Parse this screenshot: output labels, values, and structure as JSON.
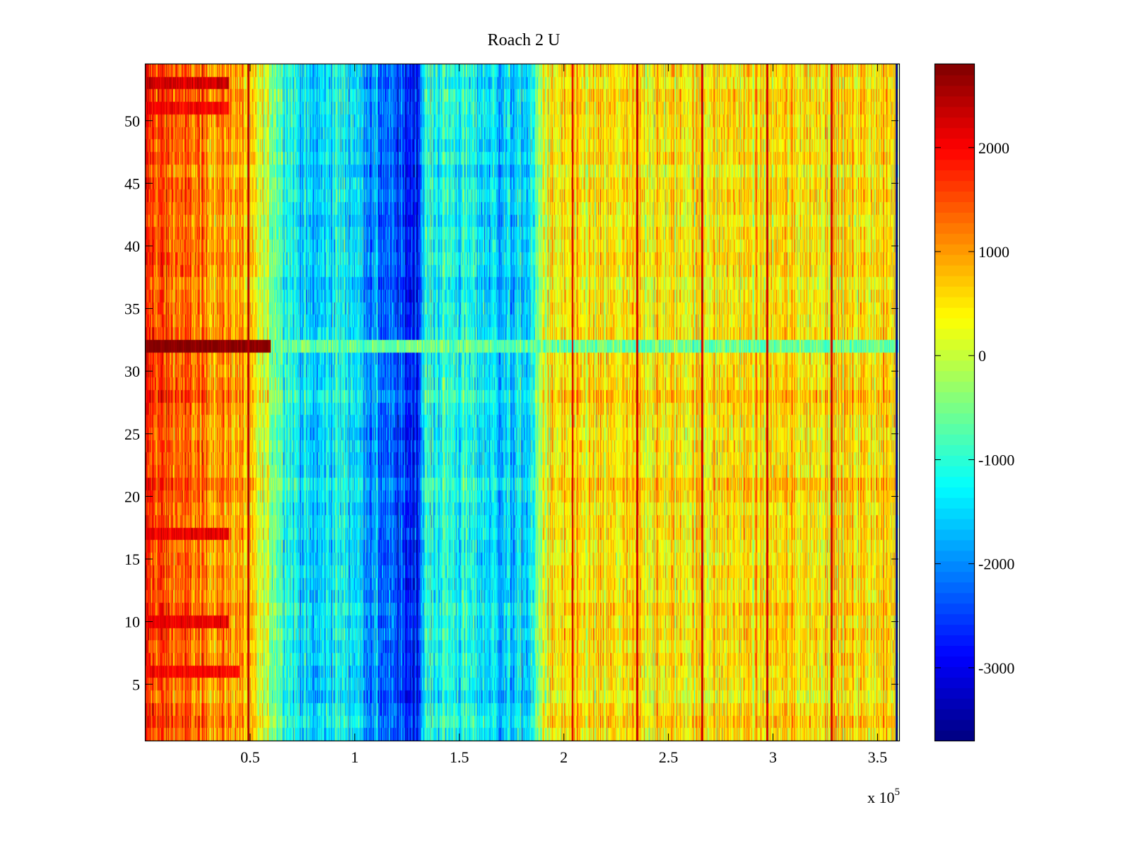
{
  "chart_data": {
    "type": "heatmap",
    "title": "Roach 2 U",
    "xlabel": "",
    "ylabel": "",
    "x_multiplier_label": "x 10",
    "x_multiplier_exponent": "5",
    "xlim": [
      0,
      3.6
    ],
    "ylim": [
      0.5,
      54.5
    ],
    "n_rows": 54,
    "x_ticks": [
      0.5,
      1,
      1.5,
      2,
      2.5,
      3,
      3.5
    ],
    "x_tick_labels": [
      "0.5",
      "1",
      "1.5",
      "2",
      "2.5",
      "3",
      "3.5"
    ],
    "y_ticks": [
      5,
      10,
      15,
      20,
      25,
      30,
      35,
      40,
      45,
      50
    ],
    "y_tick_labels": [
      "5",
      "10",
      "15",
      "20",
      "25",
      "30",
      "35",
      "40",
      "45",
      "50"
    ],
    "colorbar": {
      "colormap": "jet",
      "clim": [
        -3700,
        2800
      ],
      "ticks": [
        -3000,
        -2000,
        -1000,
        0,
        1000,
        2000
      ],
      "tick_labels": [
        "-3000",
        "-2000",
        "-1000",
        "0",
        "1000",
        "2000"
      ]
    },
    "profile_x": [
      0,
      0.1,
      0.2,
      0.3,
      0.45,
      0.5,
      0.6,
      0.7,
      0.8,
      0.9,
      1.0,
      1.1,
      1.2,
      1.3,
      1.33,
      1.45,
      1.6,
      1.75,
      1.85,
      1.9,
      2.0,
      2.5,
      3.0,
      3.6
    ],
    "profile_values": [
      1700,
      1500,
      1300,
      1150,
      1000,
      400,
      -200,
      -1100,
      -1700,
      -1200,
      -1300,
      -2000,
      -2500,
      -2700,
      -1200,
      -1000,
      -1300,
      -1600,
      -1400,
      300,
      400,
      500,
      550,
      600
    ],
    "hot_rows": [
      {
        "row": 32,
        "x_end": 0.6,
        "value": 2800,
        "row_after": -600
      },
      {
        "row": 53,
        "x_end": 0.4,
        "value": 2300
      },
      {
        "row": 51,
        "x_end": 0.4,
        "value": 2000
      },
      {
        "row": 17,
        "x_end": 0.4,
        "value": 2100
      },
      {
        "row": 10,
        "x_end": 0.4,
        "value": 2100
      },
      {
        "row": 6,
        "x_end": 0.45,
        "value": 2000
      }
    ],
    "vertical_lines": [
      {
        "x": 0.49,
        "value": 2400
      },
      {
        "x": 2.04,
        "value": 2300
      },
      {
        "x": 2.35,
        "value": 2300
      },
      {
        "x": 2.66,
        "value": 2300
      },
      {
        "x": 2.97,
        "value": 2300
      },
      {
        "x": 3.28,
        "value": 2300
      },
      {
        "x": 3.59,
        "value": -3600
      }
    ]
  }
}
